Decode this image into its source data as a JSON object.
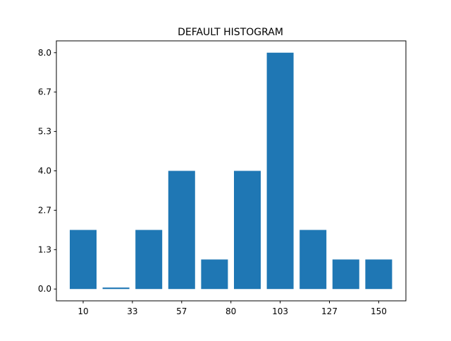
{
  "chart_data": {
    "type": "bar",
    "title": "DEFAULT HISTOGRAM",
    "xlabel": "",
    "ylabel": "",
    "values": [
      2,
      0.05,
      2,
      4,
      1,
      4,
      8,
      2,
      1,
      1
    ],
    "x_tick_labels": [
      "10",
      "33",
      "57",
      "80",
      "103",
      "127",
      "150"
    ],
    "y_tick_labels": [
      "0.0",
      "1.3",
      "2.7",
      "4.0",
      "5.3",
      "6.7",
      "8.0"
    ],
    "ylim": [
      -0.4,
      8.4
    ],
    "grid": false,
    "bar_color": "#1f77b4"
  }
}
